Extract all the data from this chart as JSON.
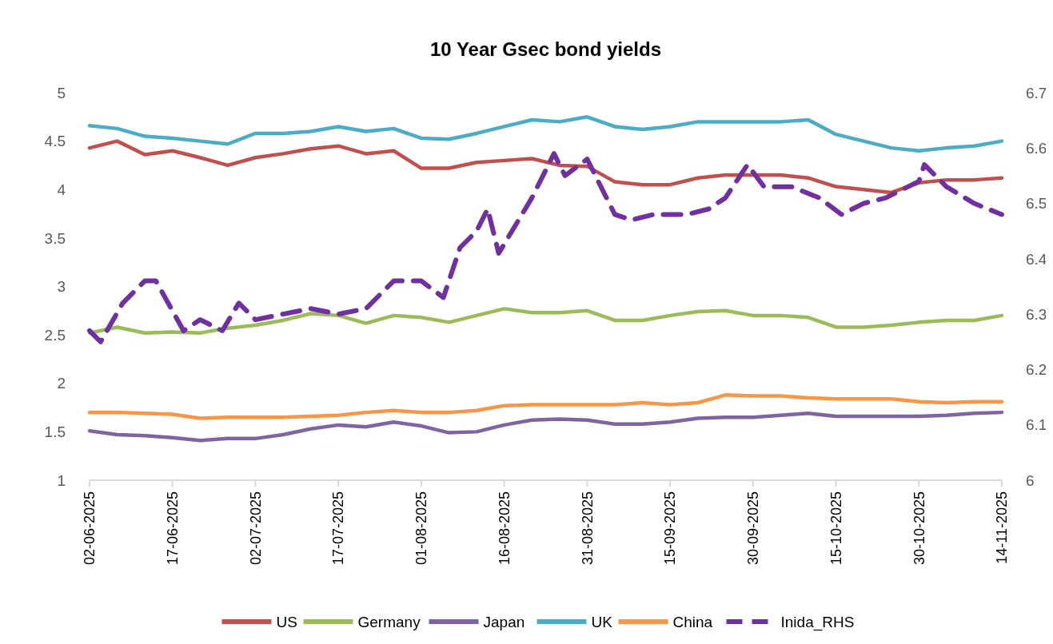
{
  "chart_data": {
    "type": "line",
    "title": "10 Year Gsec bond yields",
    "x": [
      "2025-06-02",
      "2025-06-07",
      "2025-06-12",
      "2025-06-17",
      "2025-06-22",
      "2025-06-27",
      "2025-07-02",
      "2025-07-07",
      "2025-07-12",
      "2025-07-17",
      "2025-07-22",
      "2025-07-27",
      "2025-08-01",
      "2025-08-06",
      "2025-08-11",
      "2025-08-16",
      "2025-08-21",
      "2025-08-26",
      "2025-08-31",
      "2025-09-05",
      "2025-09-10",
      "2025-09-15",
      "2025-09-20",
      "2025-09-25",
      "2025-09-30",
      "2025-10-05",
      "2025-10-10",
      "2025-10-15",
      "2025-10-20",
      "2025-10-25",
      "2025-10-30",
      "2025-11-04",
      "2025-11-09",
      "2025-11-14"
    ],
    "series": [
      {
        "name": "US",
        "color": "#c0504d",
        "values": [
          4.43,
          4.5,
          4.36,
          4.4,
          4.33,
          4.25,
          4.33,
          4.37,
          4.42,
          4.45,
          4.37,
          4.4,
          4.22,
          4.22,
          4.28,
          4.3,
          4.32,
          4.25,
          4.24,
          4.08,
          4.05,
          4.05,
          4.12,
          4.15,
          4.15,
          4.15,
          4.12,
          4.03,
          4.0,
          3.97,
          4.07,
          4.1,
          4.1,
          4.12
        ]
      },
      {
        "name": "Germany",
        "color": "#9bbb59",
        "values": [
          2.52,
          2.58,
          2.52,
          2.53,
          2.52,
          2.57,
          2.6,
          2.65,
          2.72,
          2.7,
          2.62,
          2.7,
          2.68,
          2.63,
          2.7,
          2.77,
          2.73,
          2.73,
          2.75,
          2.65,
          2.65,
          2.7,
          2.74,
          2.75,
          2.7,
          2.7,
          2.68,
          2.58,
          2.58,
          2.6,
          2.63,
          2.65,
          2.65,
          2.7
        ]
      },
      {
        "name": "Japan",
        "color": "#8064a2",
        "values": [
          1.51,
          1.47,
          1.46,
          1.44,
          1.41,
          1.43,
          1.43,
          1.47,
          1.53,
          1.57,
          1.55,
          1.6,
          1.56,
          1.49,
          1.5,
          1.57,
          1.62,
          1.63,
          1.62,
          1.58,
          1.58,
          1.6,
          1.64,
          1.65,
          1.65,
          1.67,
          1.69,
          1.66,
          1.66,
          1.66,
          1.66,
          1.67,
          1.69,
          1.7
        ]
      },
      {
        "name": "UK",
        "color": "#4bacc6",
        "values": [
          4.66,
          4.63,
          4.55,
          4.53,
          4.5,
          4.47,
          4.58,
          4.58,
          4.6,
          4.65,
          4.6,
          4.63,
          4.53,
          4.52,
          4.58,
          4.65,
          4.72,
          4.7,
          4.75,
          4.65,
          4.62,
          4.65,
          4.7,
          4.7,
          4.7,
          4.7,
          4.72,
          4.57,
          4.5,
          4.43,
          4.4,
          4.43,
          4.45,
          4.5
        ]
      },
      {
        "name": "China",
        "color": "#f79646",
        "values": [
          1.7,
          1.7,
          1.69,
          1.68,
          1.64,
          1.65,
          1.65,
          1.65,
          1.66,
          1.67,
          1.7,
          1.72,
          1.7,
          1.7,
          1.72,
          1.77,
          1.78,
          1.78,
          1.78,
          1.78,
          1.8,
          1.78,
          1.8,
          1.88,
          1.87,
          1.87,
          1.85,
          1.84,
          1.84,
          1.84,
          1.81,
          1.8,
          1.81,
          1.81
        ]
      },
      {
        "name": "Inida_RHS",
        "color": "#7030a0",
        "axis": "y2",
        "line_style": "dashed",
        "x": [
          "2025-06-02",
          "2025-06-04",
          "2025-06-08",
          "2025-06-12",
          "2025-06-14",
          "2025-06-19",
          "2025-06-22",
          "2025-06-26",
          "2025-06-29",
          "2025-07-02",
          "2025-07-07",
          "2025-07-12",
          "2025-07-17",
          "2025-07-22",
          "2025-07-27",
          "2025-08-01",
          "2025-08-05",
          "2025-08-08",
          "2025-08-11",
          "2025-08-13",
          "2025-08-15",
          "2025-08-21",
          "2025-08-25",
          "2025-08-27",
          "2025-08-31",
          "2025-09-05",
          "2025-09-08",
          "2025-09-12",
          "2025-09-18",
          "2025-09-22",
          "2025-09-25",
          "2025-09-29",
          "2025-10-02",
          "2025-10-07",
          "2025-10-12",
          "2025-10-16",
          "2025-10-20",
          "2025-10-24",
          "2025-10-30",
          "2025-10-31",
          "2025-11-04",
          "2025-11-09",
          "2025-11-14"
        ],
        "values": [
          6.27,
          6.25,
          6.32,
          6.36,
          6.36,
          6.27,
          6.29,
          6.27,
          6.32,
          6.29,
          6.3,
          6.31,
          6.3,
          6.31,
          6.36,
          6.36,
          6.33,
          6.42,
          6.45,
          6.49,
          6.41,
          6.51,
          6.59,
          6.55,
          6.58,
          6.48,
          6.47,
          6.48,
          6.48,
          6.49,
          6.51,
          6.57,
          6.53,
          6.53,
          6.51,
          6.48,
          6.5,
          6.51,
          6.54,
          6.57,
          6.53,
          6.5,
          6.48
        ]
      }
    ],
    "xlim": [
      "2025-06-02",
      "2025-11-14"
    ],
    "xticks": [
      {
        "value": "2025-06-02",
        "label": "02-06-2025"
      },
      {
        "value": "2025-06-17",
        "label": "17-06-2025"
      },
      {
        "value": "2025-07-02",
        "label": "02-07-2025"
      },
      {
        "value": "2025-07-17",
        "label": "17-07-2025"
      },
      {
        "value": "2025-08-01",
        "label": "01-08-2025"
      },
      {
        "value": "2025-08-16",
        "label": "16-08-2025"
      },
      {
        "value": "2025-08-31",
        "label": "31-08-2025"
      },
      {
        "value": "2025-09-15",
        "label": "15-09-2025"
      },
      {
        "value": "2025-09-30",
        "label": "30-09-2025"
      },
      {
        "value": "2025-10-15",
        "label": "15-10-2025"
      },
      {
        "value": "2025-10-30",
        "label": "30-10-2025"
      },
      {
        "value": "2025-11-14",
        "label": "14-11-2025"
      }
    ],
    "ylim": [
      1,
      5
    ],
    "yticks": [
      1,
      1.5,
      2,
      2.5,
      3,
      3.5,
      4,
      4.5,
      5
    ],
    "y2lim": [
      6,
      6.7
    ],
    "y2ticks": [
      6,
      6.1,
      6.2,
      6.3,
      6.4,
      6.5,
      6.6,
      6.7
    ],
    "grid": false,
    "legend": "bottom",
    "marker": "none",
    "line_style": "solid"
  }
}
